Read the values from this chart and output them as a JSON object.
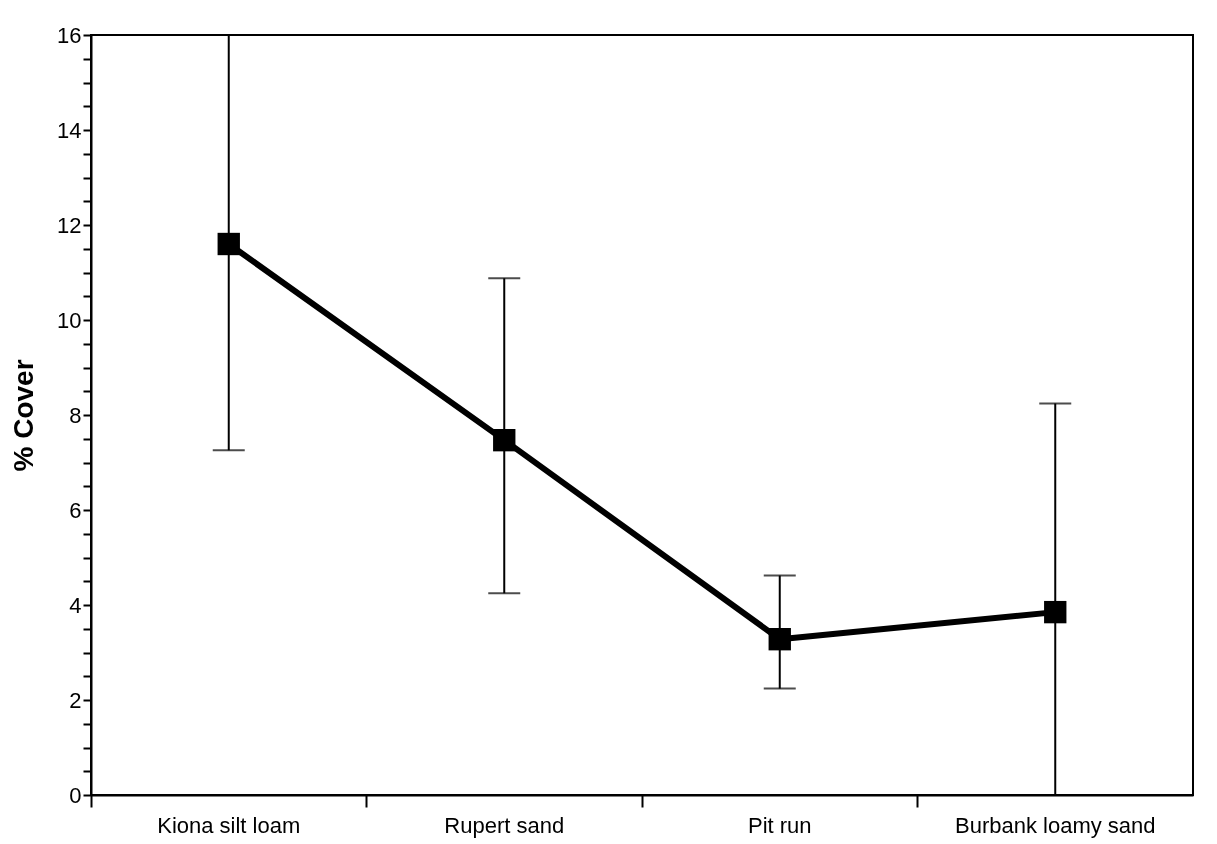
{
  "chart_data": {
    "type": "line",
    "ylabel": "% Cover",
    "categories": [
      "Kiona silt loam",
      "Rupert sand",
      "Pit run",
      "Burbank loamy sand"
    ],
    "series": [
      {
        "color": "#000000",
        "values": [
          11.6,
          7.47,
          3.28,
          3.85
        ],
        "errors": [
          [
            7.26,
            16
          ],
          [
            4.25,
            10.88
          ],
          [
            2.24,
            4.62
          ],
          [
            0,
            8.24
          ]
        ]
      }
    ],
    "ylim": [
      0,
      16
    ],
    "yticks": [
      0,
      {
        "value": 0.5,
        "label": null
      },
      {
        "value": 1,
        "label": null
      },
      {
        "value": 1.5,
        "label": null
      },
      2,
      {
        "value": 2.5,
        "label": null
      },
      {
        "value": 3,
        "label": null
      },
      {
        "value": 3.5,
        "label": null
      },
      4,
      {
        "value": 4.5,
        "label": null
      },
      {
        "value": 5,
        "label": null
      },
      {
        "value": 5.5,
        "label": null
      },
      6,
      {
        "value": 6.5,
        "label": null
      },
      {
        "value": 7,
        "label": null
      },
      {
        "value": 7.5,
        "label": null
      },
      8,
      {
        "value": 8.5,
        "label": null
      },
      {
        "value": 9,
        "label": null
      },
      {
        "value": 9.5,
        "label": null
      },
      10,
      {
        "value": 10.5,
        "label": null
      },
      {
        "value": 11,
        "label": null
      },
      {
        "value": 11.5,
        "label": null
      },
      12,
      {
        "value": 12.5,
        "label": null
      },
      {
        "value": 13,
        "label": null
      },
      {
        "value": 13.5,
        "label": null
      },
      14,
      {
        "value": 14.5,
        "label": null
      },
      {
        "value": 15,
        "label": null
      },
      {
        "value": 15.5,
        "label": null
      },
      16
    ],
    "grid": false,
    "legend": false,
    "marker": "square",
    "line_style": "solid"
  }
}
